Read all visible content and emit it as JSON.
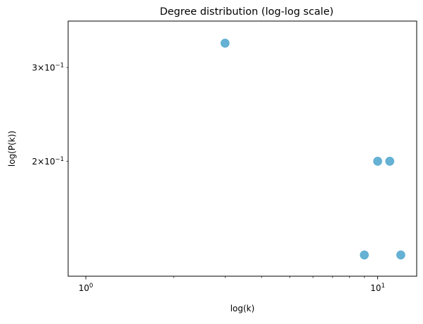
{
  "chart_data": {
    "type": "scatter",
    "title": "Degree distribution (log-log scale)",
    "xlabel": "log(k)",
    "ylabel": "log(P(k))",
    "x_scale": "log",
    "y_scale": "log",
    "xlim": [
      0.87,
      13.6
    ],
    "ylim": [
      0.1216,
      0.3667
    ],
    "grid": false,
    "marker_color": "#4aa5cc",
    "points": [
      {
        "x": 3,
        "y": 0.3333
      },
      {
        "x": 10,
        "y": 0.2
      },
      {
        "x": 11,
        "y": 0.2
      },
      {
        "x": 9,
        "y": 0.1333
      },
      {
        "x": 12,
        "y": 0.1333
      }
    ],
    "x_ticks": [
      {
        "value": 1,
        "base": "10",
        "exp": "0"
      },
      {
        "value": 10,
        "base": "10",
        "exp": "1"
      }
    ],
    "y_ticks": [
      {
        "value": 0.3,
        "mant": "3",
        "base": "10",
        "exp": "−1"
      },
      {
        "value": 0.2,
        "mant": "2",
        "base": "10",
        "exp": "−1"
      }
    ]
  }
}
